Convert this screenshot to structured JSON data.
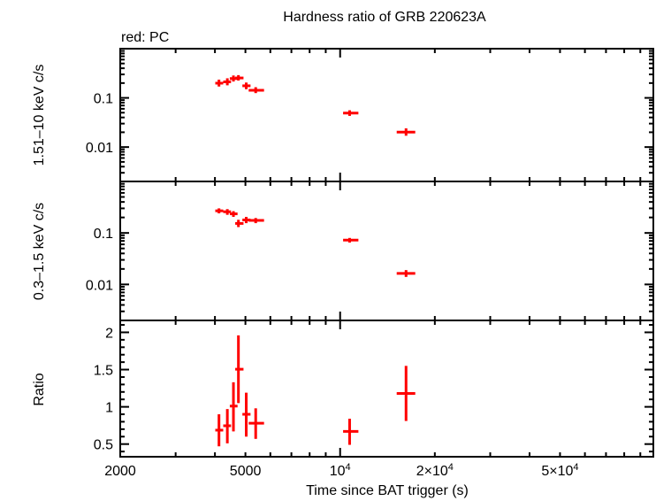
{
  "chart_data": {
    "type": "scatter",
    "title": "Hardness ratio of GRB 220623A",
    "legend_note": "red: PC",
    "xlabel": "Time since BAT trigger (s)",
    "xscale": "log",
    "xlim": [
      2000,
      99000
    ],
    "xticks": [
      {
        "v": 2000,
        "label": "2000"
      },
      {
        "v": 5000,
        "label": "5000"
      },
      {
        "v": 10000,
        "label": "10",
        "sup": "4"
      },
      {
        "v": 20000,
        "label": "2×10",
        "sup": "4"
      },
      {
        "v": 50000,
        "label": "5×10",
        "sup": "4"
      }
    ],
    "series_color": "#ff0000",
    "x": [
      4120,
      4380,
      4580,
      4750,
      5030,
      5390,
      10720,
      16200
    ],
    "x_low": [
      4010,
      4250,
      4460,
      4640,
      4890,
      5120,
      10220,
      15130
    ],
    "x_high": [
      4250,
      4500,
      4720,
      4930,
      5190,
      5730,
      11430,
      17330
    ],
    "panels": [
      {
        "ylabel": "1.51–10 keV c/s",
        "yscale": "log",
        "ylim": [
          0.002,
          1
        ],
        "yticks": [
          {
            "v": 0.1,
            "label": "0.1"
          },
          {
            "v": 0.01,
            "label": "0.01"
          }
        ],
        "y": [
          0.199,
          0.212,
          0.247,
          0.254,
          0.176,
          0.143,
          0.049,
          0.0201
        ],
        "y_low": [
          0.17,
          0.18,
          0.215,
          0.225,
          0.15,
          0.125,
          0.043,
          0.017
        ],
        "y_high": [
          0.235,
          0.25,
          0.285,
          0.29,
          0.205,
          0.165,
          0.056,
          0.024
        ]
      },
      {
        "ylabel": "0.3–1.5 keV c/s",
        "yscale": "log",
        "ylim": [
          0.002,
          1
        ],
        "yticks": [
          {
            "v": 0.1,
            "label": "0.1"
          },
          {
            "v": 0.01,
            "label": "0.01"
          }
        ],
        "y": [
          0.269,
          0.258,
          0.235,
          0.153,
          0.179,
          0.175,
          0.0725,
          0.0164
        ],
        "y_low": [
          0.24,
          0.225,
          0.205,
          0.13,
          0.155,
          0.155,
          0.065,
          0.014
        ],
        "y_high": [
          0.3,
          0.29,
          0.265,
          0.18,
          0.205,
          0.195,
          0.08,
          0.019
        ]
      },
      {
        "ylabel": "Ratio",
        "yscale": "linear",
        "ylim": [
          0.33,
          2.16
        ],
        "yticks": [
          {
            "v": 2,
            "label": "2"
          },
          {
            "v": 1.5,
            "label": "1.5"
          },
          {
            "v": 1,
            "label": "1"
          },
          {
            "v": 0.5,
            "label": "0.5"
          }
        ],
        "y": [
          0.687,
          0.746,
          1.01,
          1.505,
          0.9,
          0.78,
          0.67,
          1.18
        ],
        "y_low": [
          0.47,
          0.51,
          0.67,
          1.05,
          0.6,
          0.57,
          0.49,
          0.81
        ],
        "y_high": [
          0.9,
          0.97,
          1.33,
          1.96,
          1.19,
          0.98,
          0.84,
          1.55
        ]
      }
    ]
  }
}
